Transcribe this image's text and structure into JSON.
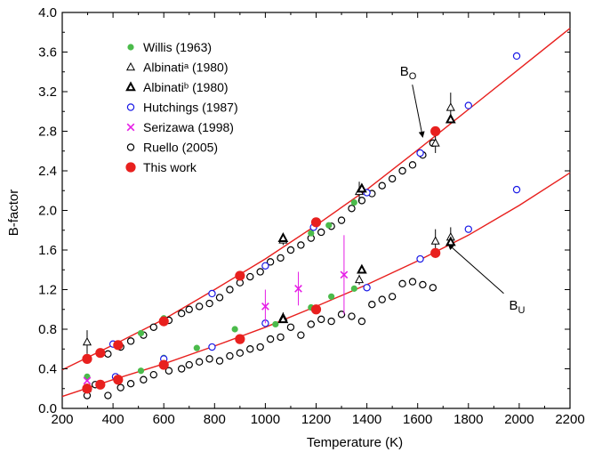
{
  "chart_data": {
    "type": "scatter",
    "xlabel": "Temperature (K)",
    "ylabel": "B-factor",
    "xlim": [
      200,
      2200
    ],
    "ylim": [
      0.0,
      4.0
    ],
    "xticks": [
      200,
      400,
      600,
      800,
      1000,
      1200,
      1400,
      1600,
      1800,
      2000,
      2200
    ],
    "xtick_labels": [
      "200",
      "400",
      "600",
      "800",
      "1000",
      "1200",
      "1400",
      "1600",
      "1800",
      "2000",
      "2200"
    ],
    "yticks": [
      0.0,
      0.4,
      0.8,
      1.2,
      1.6,
      2.0,
      2.4,
      2.8,
      3.2,
      3.6,
      4.0
    ],
    "ytick_labels": [
      "0.0",
      "0.4",
      "0.8",
      "1.2",
      "1.6",
      "2.0",
      "2.4",
      "2.8",
      "3.2",
      "3.6",
      "4.0"
    ],
    "grid": false,
    "legend_position": "top-left",
    "fit_curves": [
      {
        "label": "BO",
        "color": "#e8201e",
        "x": [
          200,
          400,
          600,
          800,
          1000,
          1200,
          1400,
          1600,
          1800,
          2000,
          2200
        ],
        "y": [
          0.39,
          0.64,
          0.9,
          1.2,
          1.51,
          1.85,
          2.21,
          2.61,
          3.02,
          3.43,
          3.84
        ]
      },
      {
        "label": "BU",
        "color": "#e8201e",
        "x": [
          200,
          400,
          600,
          800,
          1000,
          1200,
          1400,
          1600,
          1800,
          2000,
          2200
        ],
        "y": [
          0.12,
          0.29,
          0.45,
          0.63,
          0.82,
          1.03,
          1.25,
          1.49,
          1.75,
          2.05,
          2.38
        ]
      }
    ],
    "series": [
      {
        "name": "Willis (1963)",
        "marker": "filled-circle",
        "color": "#4bbb4b",
        "points": [
          [
            298,
            0.32
          ],
          [
            300,
            0.2
          ],
          [
            420,
            0.65
          ],
          [
            510,
            0.38
          ],
          [
            510,
            0.76
          ],
          [
            600,
            0.51
          ],
          [
            600,
            0.91
          ],
          [
            730,
            0.61
          ],
          [
            880,
            0.8
          ],
          [
            1040,
            0.85
          ],
          [
            1180,
            1.02
          ],
          [
            1180,
            1.77
          ],
          [
            1250,
            1.85
          ],
          [
            1260,
            1.13
          ],
          [
            1350,
            1.21
          ],
          [
            1350,
            2.08
          ]
        ]
      },
      {
        "name": "Albinatiᵃ (1980)",
        "marker": "open-triangle",
        "color": "#000000",
        "points": [
          [
            298,
            0.67
          ],
          [
            298,
            0.2
          ],
          [
            1070,
            1.7
          ],
          [
            1070,
            0.92
          ],
          [
            1370,
            2.19
          ],
          [
            1370,
            1.3
          ],
          [
            1670,
            2.68
          ],
          [
            1670,
            1.69
          ],
          [
            1730,
            3.04
          ],
          [
            1730,
            1.73
          ]
        ],
        "errors": [
          0.12,
          0.05,
          0.05,
          0.05,
          0.1,
          0.05,
          0.1,
          0.12,
          0.15,
          0.1
        ]
      },
      {
        "name": "Albinatiᵇ (1980)",
        "marker": "bold-triangle",
        "color": "#000000",
        "points": [
          [
            1070,
            1.72
          ],
          [
            1070,
            0.9
          ],
          [
            1380,
            2.22
          ],
          [
            1380,
            1.4
          ],
          [
            1730,
            2.92
          ],
          [
            1730,
            1.68
          ]
        ]
      },
      {
        "name": "Hutchings (1987)",
        "marker": "open-circle",
        "color": "#1a1ae6",
        "points": [
          [
            400,
            0.65
          ],
          [
            410,
            0.32
          ],
          [
            600,
            0.87
          ],
          [
            600,
            0.5
          ],
          [
            790,
            1.16
          ],
          [
            790,
            0.62
          ],
          [
            1000,
            1.44
          ],
          [
            1000,
            0.86
          ],
          [
            1190,
            1.83
          ],
          [
            1400,
            2.18
          ],
          [
            1400,
            1.22
          ],
          [
            1610,
            2.58
          ],
          [
            1610,
            1.51
          ],
          [
            1800,
            3.06
          ],
          [
            1800,
            1.81
          ],
          [
            1990,
            3.56
          ],
          [
            1990,
            2.21
          ]
        ]
      },
      {
        "name": "Serizawa (1998)",
        "marker": "x",
        "color": "#e61ee6",
        "points": [
          [
            298,
            0.28
          ],
          [
            1000,
            1.03
          ],
          [
            1130,
            1.21
          ],
          [
            1310,
            1.35
          ]
        ],
        "errors": [
          0.0,
          0.17,
          0.17,
          0.4
        ]
      },
      {
        "name": "Ruello (2005)",
        "marker": "open-circle",
        "color": "#000000",
        "points": [
          [
            298,
            0.13
          ],
          [
            330,
            0.24
          ],
          [
            380,
            0.55
          ],
          [
            430,
            0.62
          ],
          [
            470,
            0.68
          ],
          [
            520,
            0.74
          ],
          [
            560,
            0.82
          ],
          [
            620,
            0.89
          ],
          [
            670,
            0.96
          ],
          [
            700,
            1.0
          ],
          [
            740,
            1.03
          ],
          [
            780,
            1.06
          ],
          [
            820,
            1.12
          ],
          [
            860,
            1.2
          ],
          [
            900,
            1.27
          ],
          [
            940,
            1.33
          ],
          [
            980,
            1.38
          ],
          [
            1020,
            1.48
          ],
          [
            1060,
            1.52
          ],
          [
            1100,
            1.6
          ],
          [
            1140,
            1.65
          ],
          [
            1180,
            1.72
          ],
          [
            1220,
            1.78
          ],
          [
            1260,
            1.84
          ],
          [
            1300,
            1.9
          ],
          [
            1340,
            2.02
          ],
          [
            1380,
            2.1
          ],
          [
            1420,
            2.17
          ],
          [
            1460,
            2.25
          ],
          [
            1500,
            2.32
          ],
          [
            1540,
            2.4
          ],
          [
            1580,
            2.46
          ],
          [
            1620,
            2.56
          ],
          [
            1660,
            2.68
          ],
          [
            380,
            0.13
          ],
          [
            430,
            0.21
          ],
          [
            470,
            0.25
          ],
          [
            520,
            0.29
          ],
          [
            560,
            0.34
          ],
          [
            620,
            0.38
          ],
          [
            670,
            0.4
          ],
          [
            700,
            0.44
          ],
          [
            740,
            0.47
          ],
          [
            780,
            0.5
          ],
          [
            820,
            0.48
          ],
          [
            860,
            0.53
          ],
          [
            900,
            0.56
          ],
          [
            940,
            0.6
          ],
          [
            980,
            0.62
          ],
          [
            1020,
            0.7
          ],
          [
            1060,
            0.72
          ],
          [
            1100,
            0.82
          ],
          [
            1140,
            0.74
          ],
          [
            1180,
            0.85
          ],
          [
            1220,
            0.9
          ],
          [
            1260,
            0.88
          ],
          [
            1300,
            0.95
          ],
          [
            1340,
            0.93
          ],
          [
            1380,
            0.88
          ],
          [
            1420,
            1.05
          ],
          [
            1460,
            1.1
          ],
          [
            1500,
            1.13
          ],
          [
            1540,
            1.26
          ],
          [
            1580,
            1.28
          ],
          [
            1620,
            1.25
          ],
          [
            1660,
            1.22
          ]
        ]
      },
      {
        "name": "This work",
        "marker": "big-filled-circle",
        "color": "#e8201e",
        "points": [
          [
            298,
            0.5
          ],
          [
            350,
            0.56
          ],
          [
            420,
            0.64
          ],
          [
            600,
            0.88
          ],
          [
            900,
            1.34
          ],
          [
            1200,
            1.88
          ],
          [
            1670,
            2.8
          ],
          [
            298,
            0.2
          ],
          [
            350,
            0.24
          ],
          [
            420,
            0.29
          ],
          [
            600,
            0.44
          ],
          [
            900,
            0.7
          ],
          [
            1200,
            1.0
          ],
          [
            1670,
            1.57
          ]
        ]
      }
    ],
    "annotations": [
      {
        "text": "B",
        "subscript": "O",
        "x": 1530,
        "y": 3.36,
        "arrow_to": [
          1620,
          2.74
        ]
      },
      {
        "text": "B",
        "subscript": "U",
        "x": 1960,
        "y": 1.0,
        "arrow_to": [
          1720,
          1.66
        ]
      }
    ]
  }
}
